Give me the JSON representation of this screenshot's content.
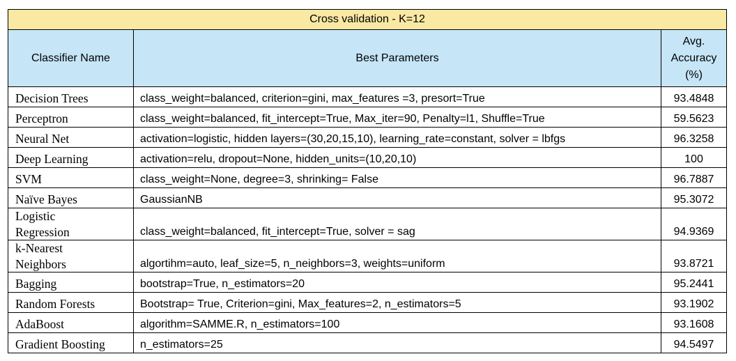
{
  "title": "Cross validation - K=12",
  "headers": {
    "name": "Classifier Name",
    "params": "Best Parameters",
    "accuracy_lines": [
      "Avg.",
      "Accuracy",
      "(%)"
    ]
  },
  "rows": [
    {
      "name": [
        "Decision Trees"
      ],
      "params": "class_weight=balanced, criterion=gini, max_features =3, presort=True",
      "accuracy": "93.4848"
    },
    {
      "name": [
        "Perceptron"
      ],
      "params": "class_weight=balanced, fit_intercept=True, Max_iter=90, Penalty=l1, Shuffle=True",
      "accuracy": "59.5623"
    },
    {
      "name": [
        "Neural Net"
      ],
      "params": "activation=logistic, hidden layers=(30,20,15,10), learning_rate=constant,  solver = lbfgs",
      "accuracy": "96.3258"
    },
    {
      "name": [
        "Deep Learning"
      ],
      "params": "activation=relu, dropout=None, hidden_units=(10,20,10)",
      "accuracy": "100"
    },
    {
      "name": [
        "SVM"
      ],
      "params": "class_weight=None, degree=3, shrinking= False",
      "accuracy": "96.7887"
    },
    {
      "name": [
        "Naïve Bayes"
      ],
      "params": "GaussianNB",
      "accuracy": "95.3072"
    },
    {
      "name": [
        "Logistic",
        "Regression"
      ],
      "params": "class_weight=balanced, fit_intercept=True, solver = sag",
      "accuracy": "94.9369"
    },
    {
      "name": [
        "k-Nearest",
        "Neighbors"
      ],
      "params": "algortihm=auto, leaf_size=5, n_neighbors=3, weights=uniform",
      "accuracy": "93.8721"
    },
    {
      "name": [
        "Bagging"
      ],
      "params": "bootstrap=True, n_estimators=20",
      "accuracy": "95.2441"
    },
    {
      "name": [
        "Random Forests"
      ],
      "params": "Bootstrap= True, Criterion=gini, Max_features=2, n_estimators=5",
      "accuracy": "93.1902"
    },
    {
      "name": [
        "AdaBoost"
      ],
      "params": "algorithm=SAMME.R, n_estimators=100",
      "accuracy": "93.1608"
    },
    {
      "name": [
        "Gradient Boosting"
      ],
      "params": "n_estimators=25",
      "accuracy": "94.5497"
    }
  ],
  "colors": {
    "title_bg": "#f9e9a3",
    "header_bg": "#c6e5f7"
  }
}
